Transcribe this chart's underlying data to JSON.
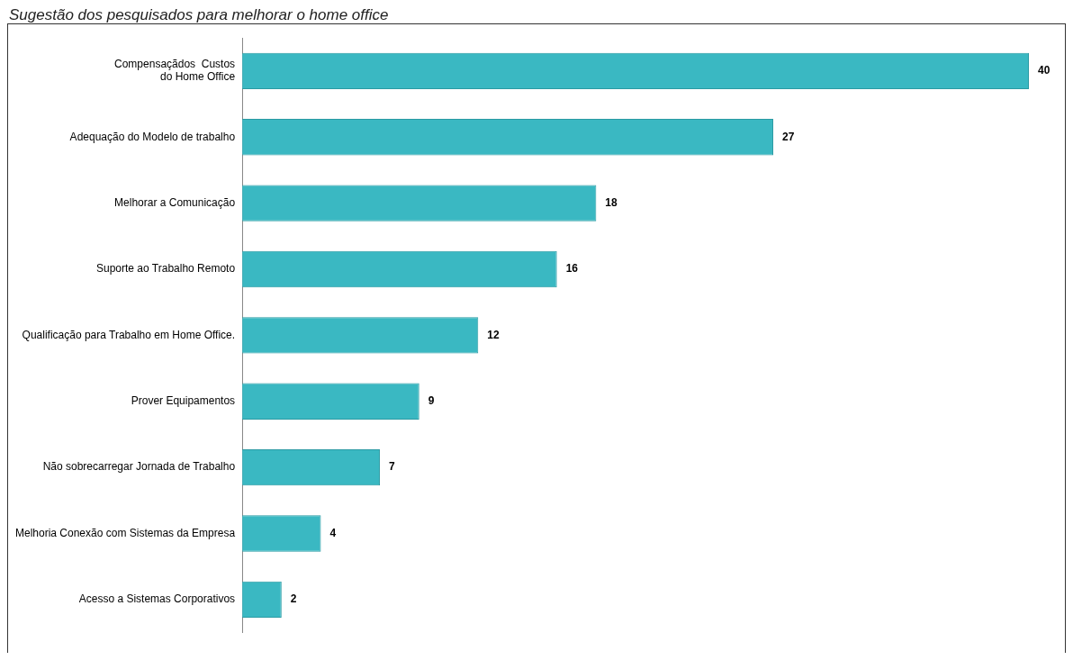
{
  "chart_data": {
    "type": "bar",
    "orientation": "horizontal",
    "title": "Sugestão dos pesquisados para melhorar o home office",
    "categories": [
      "Compensaçãdos  Custos\ndo Home Office",
      "Adequação do Modelo de trabalho",
      "Melhorar a Comunicação",
      "Suporte ao Trabalho Remoto",
      "Qualificação para Trabalho em Home Office.",
      "Prover Equipamentos",
      "Não sobrecarregar Jornada de Trabalho",
      "Melhoria Conexão com Sistemas da Empresa",
      "Acesso a Sistemas Corporativos"
    ],
    "values": [
      40,
      27,
      18,
      16,
      12,
      9,
      7,
      4,
      2
    ],
    "color": "#3ab8c2",
    "data_labels": true,
    "tick_labels": "y",
    "grid": false,
    "legend": false
  }
}
